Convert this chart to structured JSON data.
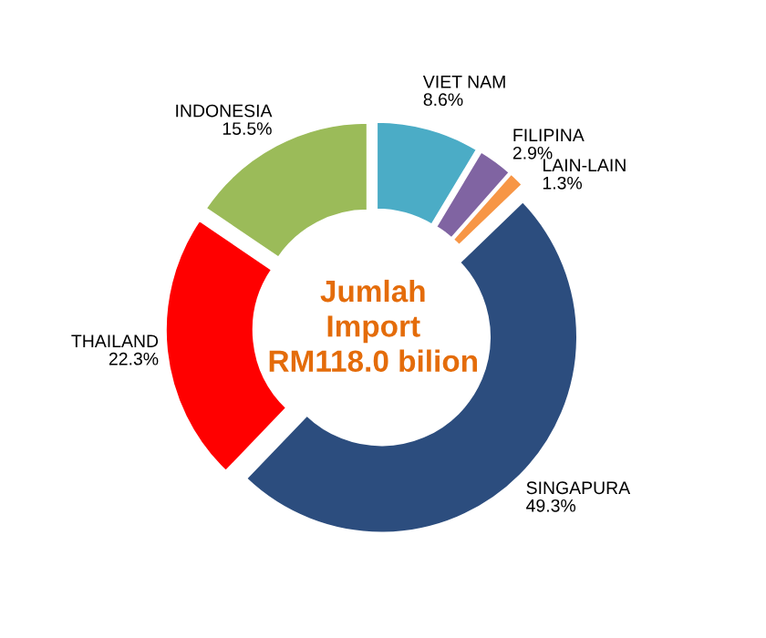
{
  "chart_data": {
    "type": "donut",
    "categories": [
      "VIET NAM",
      "FILIPINA",
      "LAIN-LAIN",
      "SINGAPURA",
      "THAILAND",
      "INDONESIA"
    ],
    "values": [
      8.6,
      2.9,
      1.3,
      49.3,
      22.3,
      15.5
    ],
    "value_labels": [
      "8.6%",
      "2.9%",
      "1.3%",
      "49.3%",
      "22.3%",
      "15.5%"
    ],
    "colors": [
      "#4bacc6",
      "#8064a2",
      "#f79646",
      "#2c4d7e",
      "#ff0000",
      "#9bbb59"
    ],
    "annotations": [
      "Jumlah\nImport\nRM118.0 bilion"
    ],
    "legend": false
  }
}
